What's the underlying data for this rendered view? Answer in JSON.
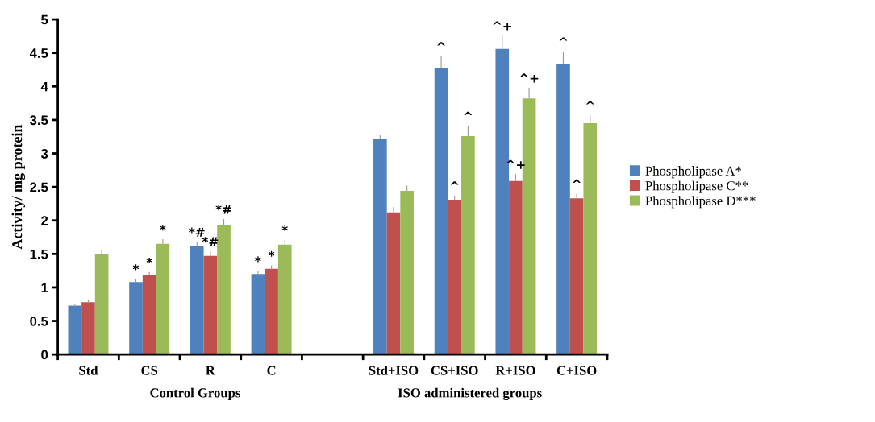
{
  "chart_data": {
    "type": "bar",
    "ylabel": "Activity/ mg protein",
    "categories": [
      "Std",
      "CS",
      "R",
      "C",
      null,
      "Std+ISO",
      "CS+ISO",
      "R+ISO",
      "C+ISO"
    ],
    "series": [
      {
        "name": "Phospholipase A*",
        "color": "#4f81bd",
        "values": [
          0.73,
          1.08,
          1.62,
          1.2,
          null,
          3.21,
          4.27,
          4.56,
          4.34
        ],
        "errors": [
          0.03,
          0.05,
          0.06,
          0.05,
          null,
          0.06,
          0.18,
          0.2,
          0.18
        ],
        "value_labels": [
          null,
          "*",
          "*#",
          "*",
          null,
          null,
          "^",
          "^+",
          "^"
        ]
      },
      {
        "name": "Phospholipase C**",
        "color": "#c0504d",
        "values": [
          0.78,
          1.18,
          1.47,
          1.28,
          null,
          2.12,
          2.31,
          2.59,
          2.33
        ],
        "errors": [
          0.03,
          0.05,
          0.07,
          0.05,
          null,
          0.08,
          0.06,
          0.1,
          0.07
        ],
        "value_labels": [
          null,
          "*",
          "*#",
          "*",
          null,
          null,
          "^",
          "^+",
          "^"
        ]
      },
      {
        "name": "Phospholipase D***",
        "color": "#9bbb59",
        "values": [
          1.5,
          1.65,
          1.93,
          1.64,
          null,
          2.44,
          3.26,
          3.82,
          3.45
        ],
        "errors": [
          0.06,
          0.07,
          0.09,
          0.07,
          null,
          0.08,
          0.15,
          0.16,
          0.12
        ],
        "value_labels": [
          null,
          "*",
          "*#",
          "*",
          null,
          null,
          "^",
          "^+",
          "^"
        ]
      }
    ],
    "ylim": [
      0,
      5
    ],
    "yticks": [
      0,
      0.5,
      1,
      1.5,
      2,
      2.5,
      3,
      3.5,
      4,
      4.5,
      5
    ],
    "grid": false,
    "legend": "right",
    "annotations": [
      "Control Groups",
      "ISO administered groups"
    ]
  }
}
